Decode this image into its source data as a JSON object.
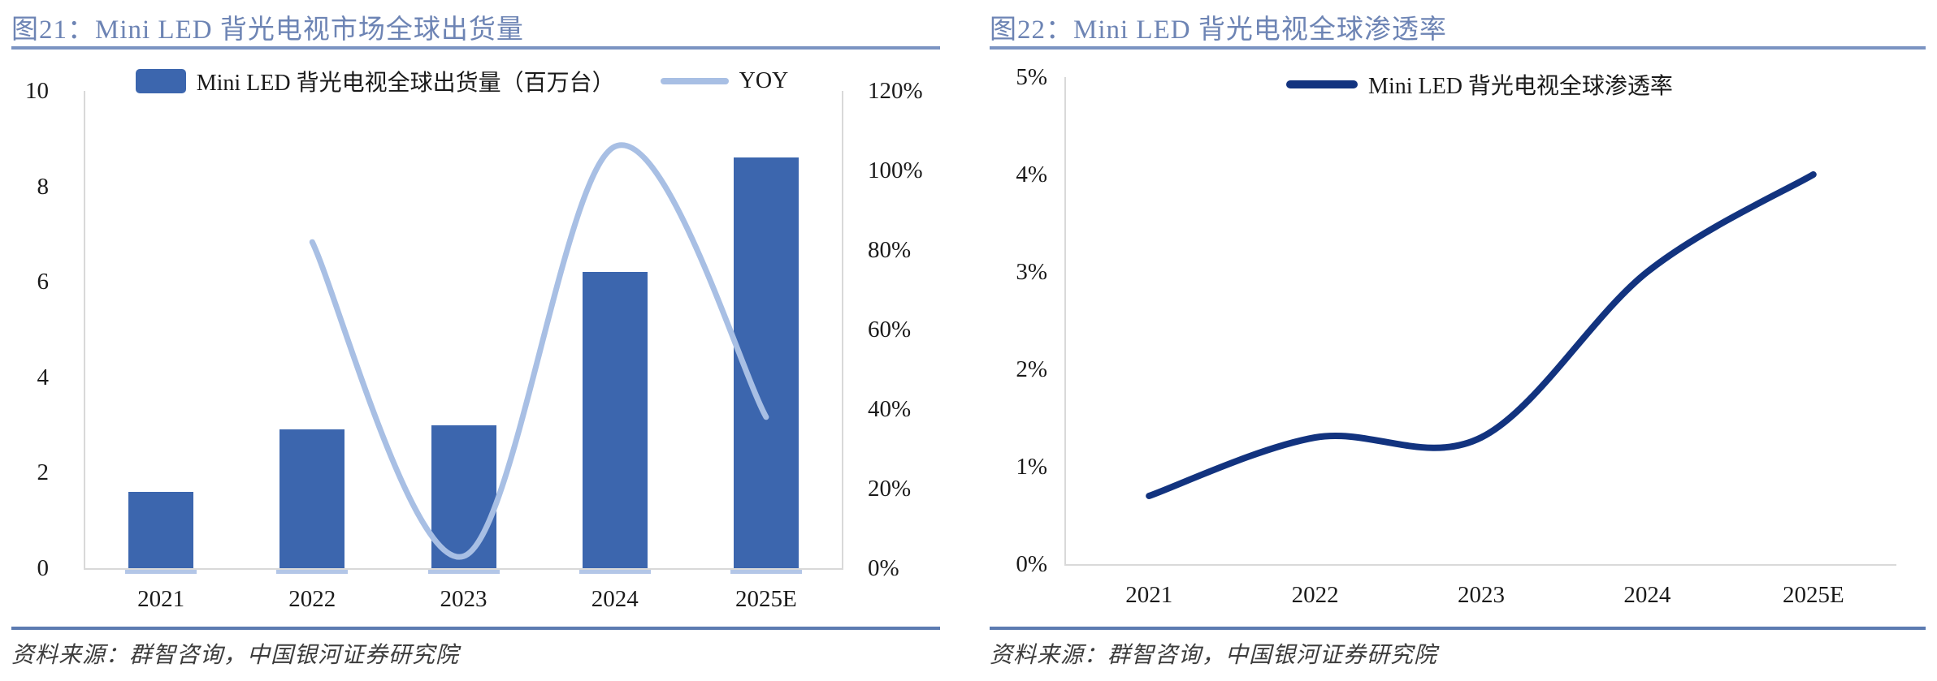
{
  "colors": {
    "bar_series": "#3C66AE",
    "yoy_line": "#A8BFE4",
    "penetration_line": "#12337F",
    "title_text": "#6D84B4",
    "rule_top": "#7B94C2",
    "rule_bottom": "#5C7BB1",
    "axis_line": "#D9D9D9"
  },
  "sources": {
    "fig21": "资料来源：群智咨询，中国银河证券研究院",
    "fig22": "资料来源：群智咨询，中国银河证券研究院"
  },
  "chart_data": [
    {
      "type": "bar",
      "subtype": "combo-bar-line-dual-axis",
      "title": "图21：Mini LED 背光电视市场全球出货量",
      "categories": [
        "2021",
        "2022",
        "2023",
        "2024",
        "2025E"
      ],
      "bars": {
        "name": "Mini LED 背光电视全球出货量（百万台）",
        "unit": "百万台",
        "axis": "left",
        "values": [
          1.6,
          2.9,
          3.0,
          6.2,
          8.6
        ]
      },
      "line": {
        "name": "YOY",
        "axis": "right",
        "values_pct": [
          null,
          82,
          3,
          106,
          38
        ],
        "axis_max_pct": 120,
        "smooth": true
      },
      "left_axis": {
        "min": 0,
        "max": 10,
        "ticks": [
          {
            "label": "0",
            "v": 0
          },
          {
            "label": "2",
            "v": 2
          },
          {
            "label": "4",
            "v": 4
          },
          {
            "label": "6",
            "v": 6
          },
          {
            "label": "8",
            "v": 8
          },
          {
            "label": "10",
            "v": 10
          }
        ]
      },
      "right_axis": {
        "min_pct": 0,
        "max_pct": 120,
        "ticks": [
          {
            "label": "0%",
            "v": 0
          },
          {
            "label": "20%",
            "v": 20
          },
          {
            "label": "40%",
            "v": 40
          },
          {
            "label": "60%",
            "v": 60
          },
          {
            "label": "80%",
            "v": 80
          },
          {
            "label": "100%",
            "v": 100
          },
          {
            "label": "120%",
            "v": 120
          }
        ]
      },
      "grid": false,
      "legend_position": "top-center"
    },
    {
      "type": "line",
      "title": "图22：Mini LED 背光电视全球渗透率",
      "categories": [
        "2021",
        "2022",
        "2023",
        "2024",
        "2025E"
      ],
      "line": {
        "name": "Mini LED 背光电视全球渗透率",
        "values_pct": [
          0.7,
          1.3,
          1.3,
          3.0,
          4.0
        ],
        "axis_max_pct": 5,
        "smooth": true
      },
      "left_axis": {
        "min_pct": 0,
        "max_pct": 5,
        "ticks": [
          {
            "label": "0%",
            "v": 0
          },
          {
            "label": "1%",
            "v": 1
          },
          {
            "label": "2%",
            "v": 2
          },
          {
            "label": "3%",
            "v": 3
          },
          {
            "label": "4%",
            "v": 4
          },
          {
            "label": "5%",
            "v": 5
          }
        ]
      },
      "grid": false,
      "legend_position": "top-center"
    }
  ]
}
